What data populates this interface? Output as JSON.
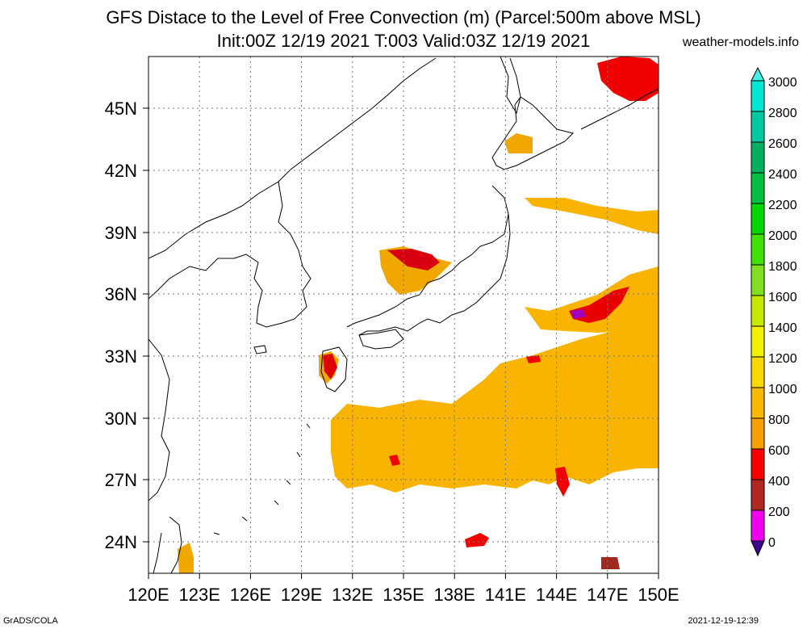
{
  "title_line1": "GFS Distace to the Level of Free Convection (m) (Parcel:500m above MSL)",
  "title_line2": "Init:00Z 12/19 2021 T:003 Valid:03Z 12/19 2021",
  "site": "weather-models.info",
  "footer_left": "GrADS/COLA",
  "footer_right": "2021-12-19-12:39",
  "map": {
    "lon_labels": [
      "120E",
      "123E",
      "126E",
      "129E",
      "132E",
      "135E",
      "138E",
      "141E",
      "144E",
      "147E",
      "150E"
    ],
    "lat_labels": [
      "45N",
      "42N",
      "39N",
      "36N",
      "33N",
      "30N",
      "27N",
      "24N"
    ],
    "lon_range": [
      120,
      150
    ],
    "lat_range": [
      22.5,
      47.5
    ],
    "grid": true
  },
  "colorbar": {
    "labels": [
      "3000",
      "2800",
      "2600",
      "2400",
      "2200",
      "2000",
      "1800",
      "1600",
      "1400",
      "1200",
      "1000",
      "800",
      "600",
      "400",
      "200",
      "0"
    ],
    "colors": [
      "#00e8d0",
      "#00c8a0",
      "#00b060",
      "#00c040",
      "#00d800",
      "#40e000",
      "#80e020",
      "#c8e800",
      "#f0f000",
      "#f8d800",
      "#f8b800",
      "#f8a000",
      "#f80000",
      "#b02820",
      "#f000f0",
      "#400090"
    ]
  },
  "shaded_regions": [
    {
      "name": "ocean-south-main",
      "level": "800-1000",
      "color": "#f8b400"
    },
    {
      "name": "ocean-east",
      "level": "800-1000",
      "color": "#f8b400"
    },
    {
      "name": "japan-sea-coast",
      "level": "400-800",
      "color": "#f0a000"
    },
    {
      "name": "north-pacific-red",
      "level": "400-600",
      "color": "#f80000"
    }
  ]
}
